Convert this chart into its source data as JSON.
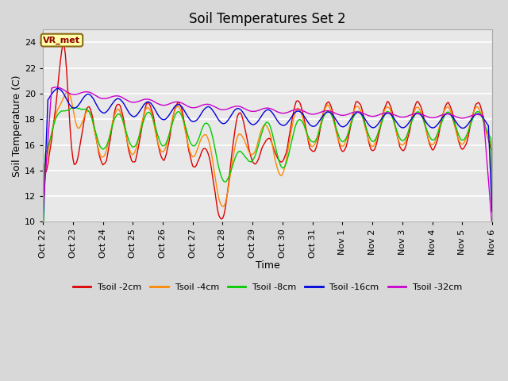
{
  "title": "Soil Temperatures Set 2",
  "xlabel": "Time",
  "ylabel": "Soil Temperature (C)",
  "ylim": [
    10,
    25
  ],
  "yticks": [
    10,
    12,
    14,
    16,
    18,
    20,
    22,
    24
  ],
  "xlim_labels": [
    "Oct 22",
    "Oct 23",
    "Oct 24",
    "Oct 25",
    "Oct 26",
    "Oct 27",
    "Oct 28",
    "Oct 29",
    "Oct 30",
    "Oct 31",
    "Nov 1",
    "Nov 2",
    "Nov 3",
    "Nov 4",
    "Nov 5",
    "Nov 6"
  ],
  "annotation": "VR_met",
  "colors": {
    "2cm": "#dd0000",
    "4cm": "#ff8800",
    "8cm": "#00cc00",
    "16cm": "#0000dd",
    "32cm": "#cc00cc"
  },
  "legend_labels": [
    "Tsoil -2cm",
    "Tsoil -4cm",
    "Tsoil -8cm",
    "Tsoil -16cm",
    "Tsoil -32cm"
  ],
  "bg_color": "#d8d8d8",
  "title_fontsize": 12,
  "axis_fontsize": 9,
  "tick_fontsize": 8
}
